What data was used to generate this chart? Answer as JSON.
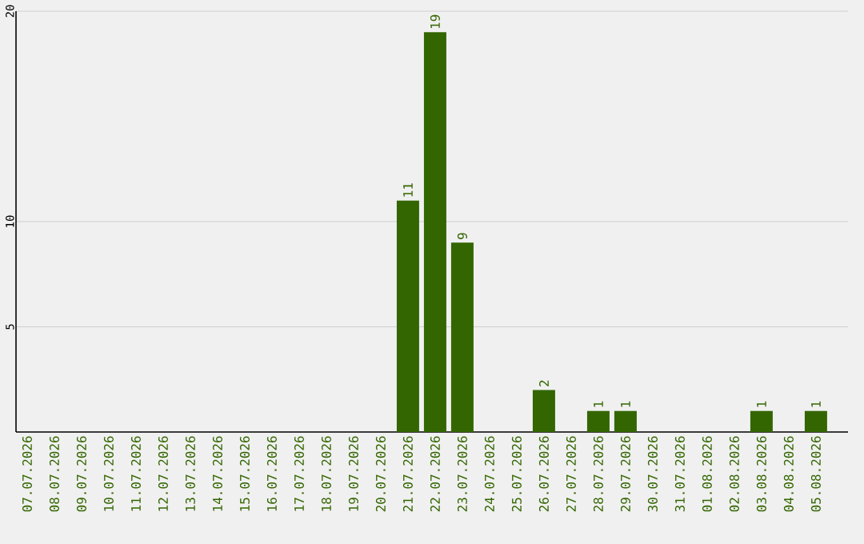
{
  "chart_data": {
    "type": "bar",
    "categories": [
      "07.07.2026",
      "08.07.2026",
      "09.07.2026",
      "10.07.2026",
      "11.07.2026",
      "12.07.2026",
      "13.07.2026",
      "14.07.2026",
      "15.07.2026",
      "16.07.2026",
      "17.07.2026",
      "18.07.2026",
      "19.07.2026",
      "20.07.2026",
      "21.07.2026",
      "22.07.2026",
      "23.07.2026",
      "24.07.2026",
      "25.07.2026",
      "26.07.2026",
      "27.07.2026",
      "28.07.2026",
      "29.07.2026",
      "30.07.2026",
      "31.07.2026",
      "01.08.2026",
      "02.08.2026",
      "03.08.2026",
      "04.08.2026",
      "05.08.2026"
    ],
    "values": [
      0,
      0,
      0,
      0,
      0,
      0,
      0,
      0,
      0,
      0,
      0,
      0,
      0,
      0,
      11,
      19,
      9,
      0,
      0,
      2,
      0,
      1,
      1,
      0,
      0,
      0,
      0,
      1,
      0,
      1
    ],
    "value_labels": [
      null,
      null,
      null,
      null,
      null,
      null,
      null,
      null,
      null,
      null,
      null,
      null,
      null,
      null,
      "11",
      "19",
      "9",
      null,
      null,
      "2",
      null,
      "1",
      "1",
      null,
      null,
      null,
      null,
      "1",
      null,
      "1"
    ],
    "color": "#336600",
    "ylim": [
      0,
      20
    ],
    "yticks": [
      5,
      10,
      20
    ],
    "grid": "y"
  }
}
